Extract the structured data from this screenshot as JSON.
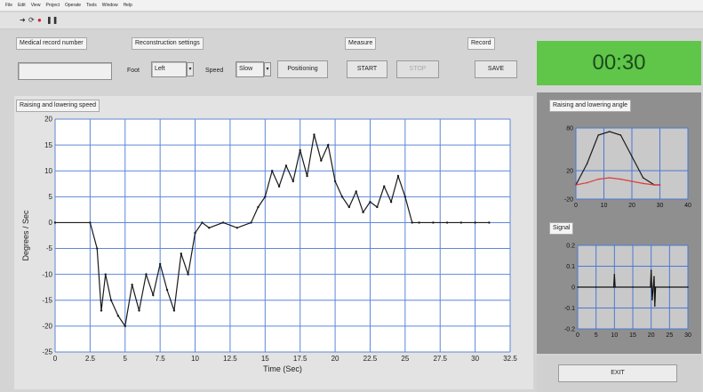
{
  "menu": [
    "File",
    "Edit",
    "View",
    "Project",
    "Operate",
    "Tools",
    "Window",
    "Help"
  ],
  "toolbar_icons": [
    "run-arrow-icon",
    "run-continuous-icon",
    "abort-icon",
    "pause-icon"
  ],
  "medical": {
    "label": "Medical record number",
    "value": ""
  },
  "recon": {
    "label": "Reconstruction settings",
    "foot_label": "Foot",
    "foot_value": "Left",
    "speed_label": "Speed",
    "speed_value": "Slow",
    "positioning_label": "Positioning"
  },
  "measure": {
    "label": "Measure",
    "start_label": "START",
    "stop_label": "STOP"
  },
  "record": {
    "label": "Record",
    "save_label": "SAVE"
  },
  "timer": "00:30",
  "exit_label": "EXIT",
  "chart_data": [
    {
      "type": "line",
      "title": "Raising and lowering speed",
      "xlabel": "Time (Sec)",
      "ylabel": "Degrees / Sec",
      "xlim": [
        0,
        32.5
      ],
      "ylim": [
        -25,
        20
      ],
      "xticks": [
        "0",
        "2.5",
        "5",
        "7.5",
        "10",
        "12.5",
        "15",
        "17.5",
        "20",
        "22.5",
        "25",
        "27.5",
        "30",
        "32.5"
      ],
      "yticks": [
        "20",
        "15",
        "10",
        "5",
        "0",
        "-5",
        "-10",
        "-15",
        "-20",
        "-25"
      ],
      "grid": true,
      "series": [
        {
          "color": "#1a1a1a",
          "x": [
            0,
            2.5,
            3,
            3.3,
            3.6,
            4,
            4.5,
            5,
            5.5,
            6,
            6.5,
            7,
            7.5,
            8,
            8.5,
            9,
            9.5,
            10,
            10.5,
            11,
            12,
            13,
            14,
            14.5,
            15,
            15.5,
            16,
            16.5,
            17,
            17.5,
            18,
            18.5,
            19,
            19.5,
            20,
            20.5,
            21,
            21.5,
            22,
            22.5,
            23,
            23.5,
            24,
            24.5,
            25,
            25.5,
            26,
            27,
            28,
            29,
            30,
            31
          ],
          "y": [
            0,
            0,
            -5,
            -17,
            -10,
            -15,
            -18,
            -20,
            -12,
            -17,
            -10,
            -14,
            -8,
            -13,
            -17,
            -6,
            -10,
            -2,
            0,
            -1,
            0,
            -1,
            0,
            3,
            5,
            10,
            7,
            11,
            8,
            14,
            9,
            17,
            12,
            15,
            8,
            5,
            3,
            6,
            2,
            4,
            3,
            7,
            4,
            9,
            5,
            0,
            0,
            0,
            0,
            0,
            0,
            0
          ]
        }
      ]
    },
    {
      "type": "line",
      "title": "Raising and lowering angle",
      "xlim": [
        0,
        40
      ],
      "ylim": [
        -20,
        80
      ],
      "xticks": [
        "0",
        "10",
        "20",
        "30",
        "40"
      ],
      "yticks": [
        "80",
        "20",
        "-20"
      ],
      "grid": true,
      "series": [
        {
          "color": "#1a1a1a",
          "x": [
            0,
            4,
            8,
            12,
            16,
            20,
            24,
            28,
            30
          ],
          "y": [
            0,
            30,
            70,
            75,
            70,
            40,
            10,
            0,
            0
          ]
        },
        {
          "color": "#e03c3c",
          "x": [
            0,
            4,
            8,
            12,
            16,
            20,
            24,
            28,
            30
          ],
          "y": [
            0,
            3,
            8,
            10,
            8,
            5,
            2,
            0,
            0
          ]
        }
      ]
    },
    {
      "type": "line",
      "title": "Signal",
      "xlim": [
        0,
        30
      ],
      "ylim": [
        -0.2,
        0.2
      ],
      "xticks": [
        "0",
        "5",
        "10",
        "15",
        "20",
        "25",
        "30"
      ],
      "yticks": [
        "0.2",
        "0.1",
        "0",
        "-0.1",
        "-0.2"
      ],
      "grid": true,
      "series": [
        {
          "color": "#111111",
          "x": [
            0,
            5,
            9.8,
            10,
            10.2,
            15,
            19.8,
            20,
            20.3,
            20.8,
            21,
            21.2,
            25,
            30
          ],
          "y": [
            0,
            0,
            0,
            0.06,
            0,
            0,
            0,
            0.08,
            -0.06,
            0.05,
            -0.09,
            0,
            0,
            0
          ]
        }
      ]
    }
  ]
}
